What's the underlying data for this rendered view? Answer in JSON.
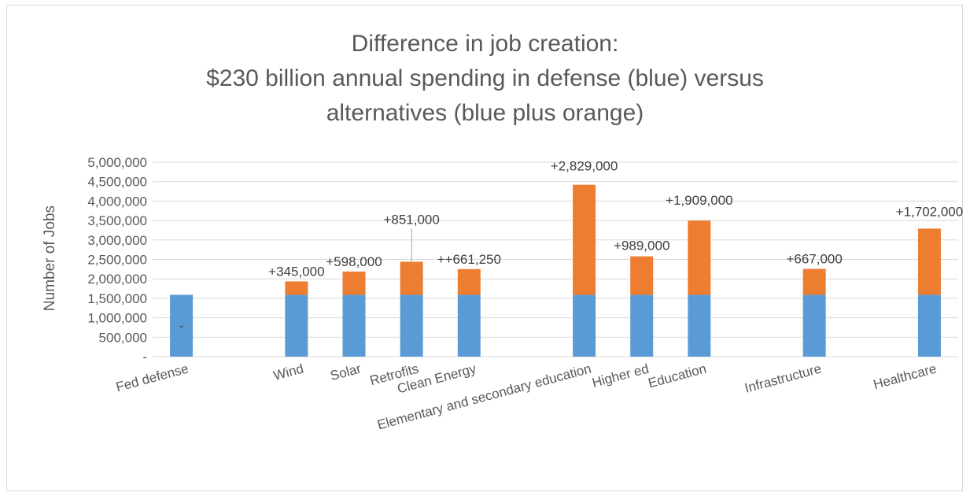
{
  "chart_data": {
    "type": "bar",
    "stacked": true,
    "title_lines": [
      "Difference in job creation:",
      "$230 billion annual spending in defense (blue) versus",
      "alternatives (blue plus orange)"
    ],
    "xlabel": "",
    "ylabel": "Number of Jobs",
    "ylim": [
      0,
      5000000
    ],
    "yticks": [
      0,
      500000,
      1000000,
      1500000,
      2000000,
      2500000,
      3000000,
      3500000,
      4000000,
      4500000,
      5000000
    ],
    "ytick_labels": [
      "-",
      "500,000",
      "1,000,000",
      "1,500,000",
      "2,000,000",
      "2,500,000",
      "3,000,000",
      "3,500,000",
      "4,000,000",
      "4,500,000",
      "5,000,000"
    ],
    "grid": true,
    "legend": "none",
    "colors": {
      "base": "#5B9BD5",
      "extra": "#ED7D31",
      "grid": "#d9d9d9",
      "text": "#595959"
    },
    "slots": 14,
    "categories": [
      {
        "label": "Fed defense",
        "slot": 0,
        "base": 1590000,
        "extra": 0,
        "label_text": "-"
      },
      {
        "label": "Wind",
        "slot": 2,
        "base": 1590000,
        "extra": 345000,
        "label_text": "+345,000"
      },
      {
        "label": "Solar",
        "slot": 3,
        "base": 1590000,
        "extra": 598000,
        "label_text": "+598,000"
      },
      {
        "label": "Retrofits",
        "slot": 4,
        "base": 1590000,
        "extra": 851000,
        "label_text": "+851,000"
      },
      {
        "label": "Clean Energy",
        "slot": 5,
        "base": 1590000,
        "extra": 661250,
        "label_text": "++661,250"
      },
      {
        "label": "Elementary and secondary education",
        "slot": 7,
        "base": 1590000,
        "extra": 2829000,
        "label_text": "+2,829,000"
      },
      {
        "label": "Higher ed",
        "slot": 8,
        "base": 1590000,
        "extra": 989000,
        "label_text": "+989,000"
      },
      {
        "label": "Education",
        "slot": 9,
        "base": 1590000,
        "extra": 1909000,
        "label_text": "+1,909,000"
      },
      {
        "label": "Infrastructure",
        "slot": 11,
        "base": 1590000,
        "extra": 667000,
        "label_text": "+667,000"
      },
      {
        "label": "Healthcare",
        "slot": 13,
        "base": 1590000,
        "extra": 1702000,
        "label_text": "+1,702,000"
      }
    ]
  }
}
